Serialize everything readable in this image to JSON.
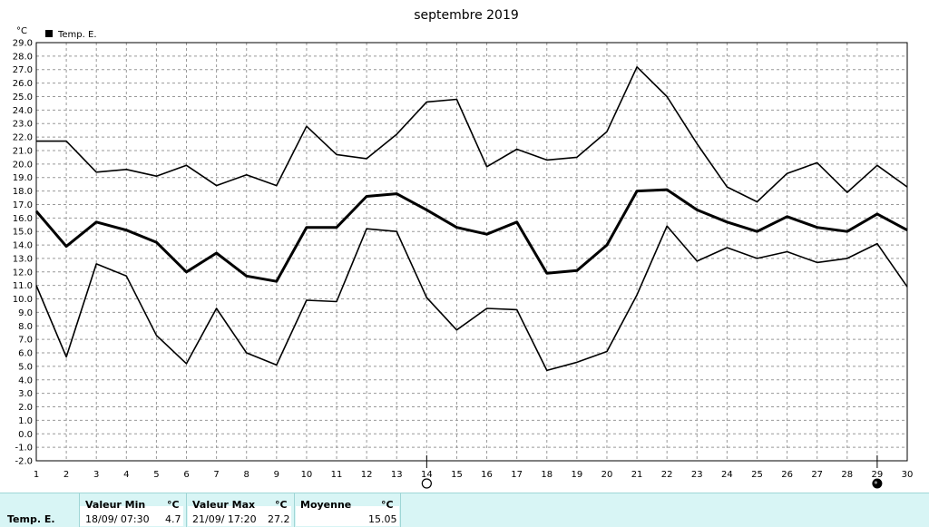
{
  "chart_data": {
    "type": "line",
    "title": "septembre 2019",
    "unit_label": "°C",
    "legend": "Temp. E.",
    "legend_placement": "top-left",
    "grid": true,
    "ylim": [
      -2.0,
      29.0
    ],
    "y_ticks": [
      "29.0",
      "28.0",
      "27.0",
      "26.0",
      "25.0",
      "24.0",
      "23.0",
      "22.0",
      "21.0",
      "20.0",
      "19.0",
      "18.0",
      "17.0",
      "16.0",
      "15.0",
      "14.0",
      "13.0",
      "12.0",
      "11.0",
      "10.0",
      "9.0",
      "8.0",
      "7.0",
      "6.0",
      "5.0",
      "4.0",
      "3.0",
      "2.0",
      "1.0",
      "0.0",
      "-1.0",
      "-2.0"
    ],
    "x_ticks": [
      "1",
      "2",
      "3",
      "4",
      "5",
      "6",
      "7",
      "8",
      "9",
      "10",
      "11",
      "12",
      "13",
      "14",
      "15",
      "16",
      "17",
      "18",
      "19",
      "20",
      "21",
      "22",
      "23",
      "24",
      "25",
      "26",
      "27",
      "28",
      "29",
      "30"
    ],
    "series": [
      {
        "role": "max",
        "values": [
          21.7,
          21.7,
          19.4,
          19.6,
          19.1,
          19.9,
          18.4,
          19.2,
          18.4,
          22.8,
          20.7,
          20.4,
          22.2,
          24.6,
          24.8,
          19.8,
          21.1,
          20.3,
          20.5,
          22.4,
          27.2,
          25.0,
          21.5,
          18.3,
          17.2,
          19.3,
          20.1,
          17.9,
          19.9,
          18.3
        ]
      },
      {
        "role": "average",
        "values": [
          16.5,
          13.9,
          15.7,
          15.1,
          14.2,
          12.0,
          13.4,
          11.7,
          11.3,
          15.3,
          15.3,
          17.6,
          17.8,
          16.6,
          15.3,
          14.8,
          15.7,
          11.9,
          12.1,
          14.0,
          18.0,
          18.1,
          16.6,
          15.7,
          15.0,
          16.1,
          15.3,
          15.0,
          16.3,
          15.1
        ]
      },
      {
        "role": "min",
        "values": [
          11.0,
          5.7,
          12.6,
          11.7,
          7.3,
          5.2,
          9.3,
          6.0,
          5.1,
          9.9,
          9.8,
          15.2,
          15.0,
          10.1,
          7.7,
          9.3,
          9.2,
          4.7,
          5.3,
          6.1,
          10.3,
          15.4,
          12.8,
          13.8,
          13.0,
          13.5,
          12.7,
          13.0,
          14.1,
          10.9
        ]
      }
    ],
    "moon_markers": [
      {
        "x": 14,
        "phase": "full-moon-icon"
      },
      {
        "x": 29,
        "phase": "new-moon-icon"
      }
    ]
  },
  "stats": {
    "row_label": "Temp. E.",
    "min_header": "Valeur Min",
    "min_unit": "°C",
    "min_datetime": "18/09/  07:30",
    "min_value": "4.7",
    "max_header": "Valeur Max",
    "max_unit": "°C",
    "max_datetime": "21/09/  17:20",
    "max_value": "27.2",
    "avg_header": "Moyenne",
    "avg_unit": "°C",
    "avg_value": "15.05"
  },
  "colors": {
    "line": "#000000",
    "grid": "#999999",
    "stats_background": "#d8f5f5"
  }
}
